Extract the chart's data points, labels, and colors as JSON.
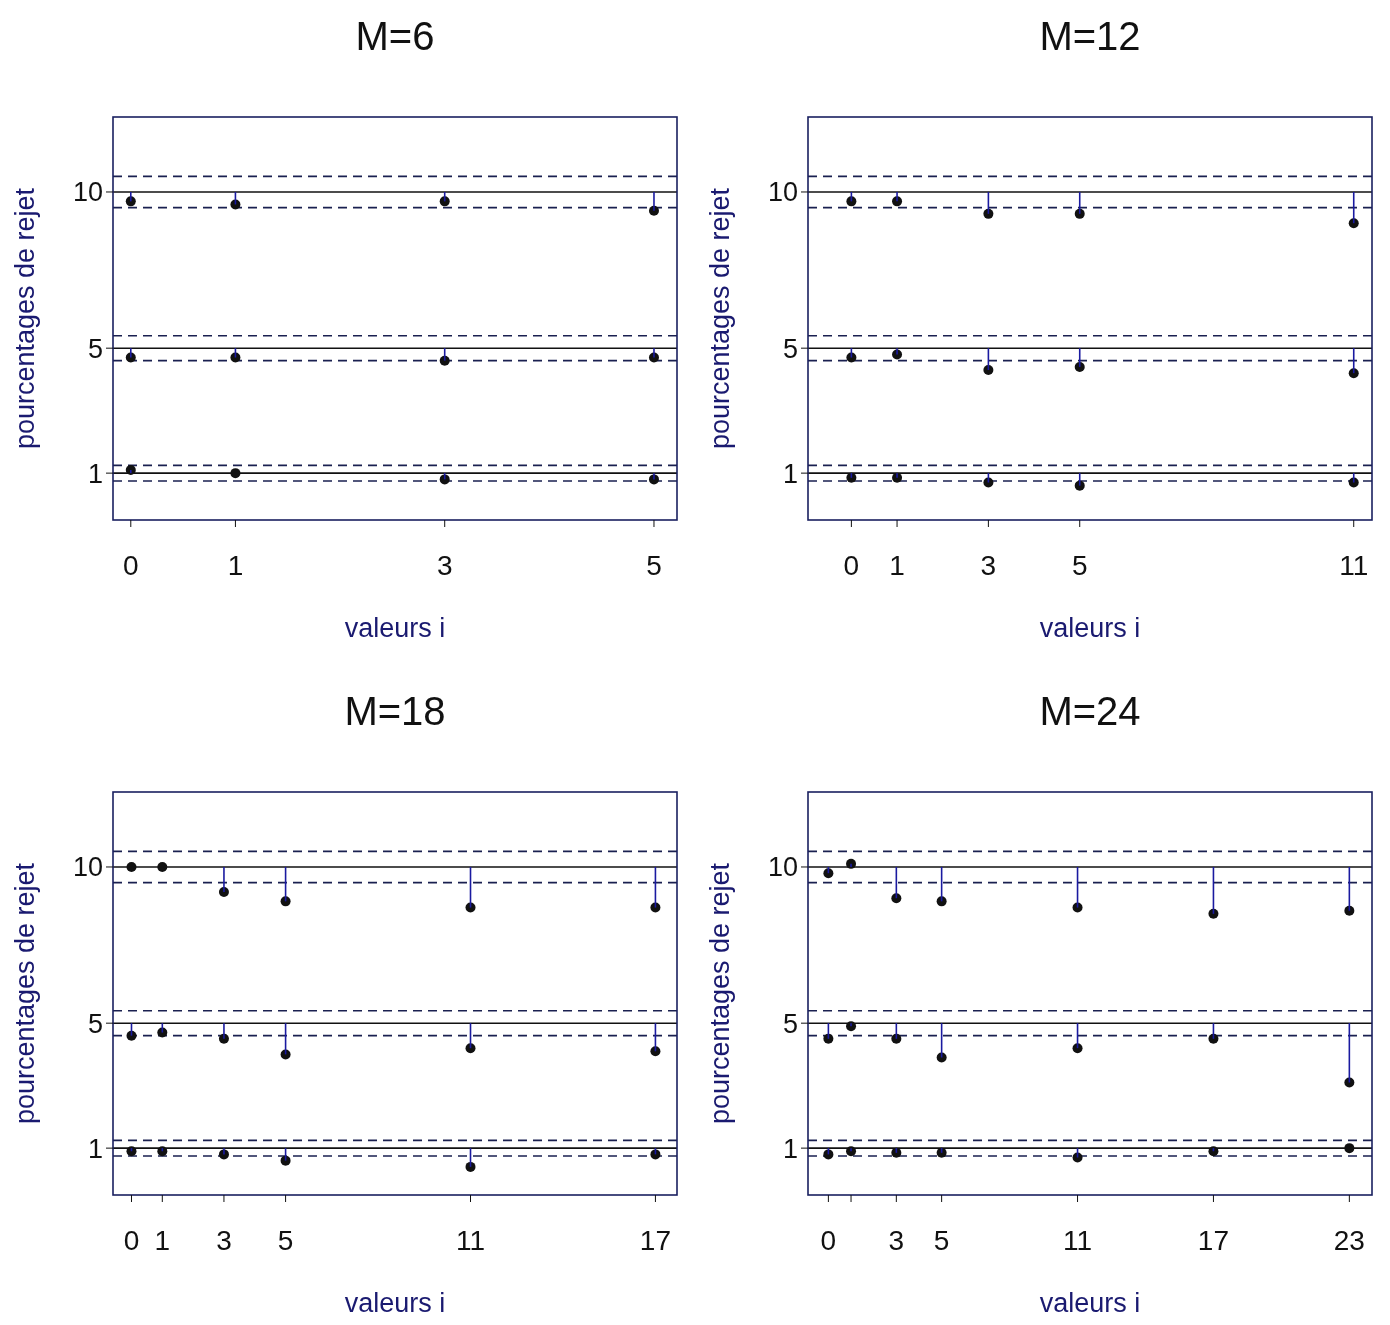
{
  "chart_data": [
    {
      "type": "scatter",
      "title": "M=6",
      "xlabel": "valeurs i",
      "ylabel": "pourcentages de rejet",
      "x": [
        0,
        1,
        3,
        5
      ],
      "xlim": [
        -0.17,
        5.22
      ],
      "xticks": [
        0,
        1,
        3,
        5
      ],
      "ylim": [
        -0.5,
        12.4
      ],
      "yticks": [
        1,
        5,
        10
      ],
      "marker": "circle",
      "series": [
        {
          "color": "#111111",
          "values": [
            9.7,
            9.6,
            9.7,
            9.4
          ],
          "errors": [
            [
              9.7,
              10
            ],
            [
              9.6,
              10
            ],
            [
              9.7,
              10
            ],
            [
              9.4,
              10
            ]
          ]
        },
        {
          "color": "#111111",
          "values": [
            4.7,
            4.7,
            4.6,
            4.7
          ],
          "errors": [
            [
              4.7,
              5
            ],
            [
              4.7,
              5
            ],
            [
              4.6,
              5
            ],
            [
              4.7,
              5
            ]
          ]
        },
        {
          "color": "#111111",
          "values": [
            1.1,
            1.0,
            0.8,
            0.8
          ],
          "errors": [
            [
              1,
              1.1
            ],
            null,
            [
              0.8,
              1
            ],
            [
              0.8,
              1
            ]
          ]
        }
      ],
      "ref_lines": [
        {
          "axis": "y",
          "value": 10,
          "color": "#111111",
          "line_style": "solid"
        },
        {
          "axis": "y",
          "value": 10.5,
          "color": "#1a2050",
          "line_style": "dashed"
        },
        {
          "axis": "y",
          "value": 9.5,
          "color": "#1a2050",
          "line_style": "dashed"
        },
        {
          "axis": "y",
          "value": 5,
          "color": "#111111",
          "line_style": "solid"
        },
        {
          "axis": "y",
          "value": 5.4,
          "color": "#1a2050",
          "line_style": "dashed"
        },
        {
          "axis": "y",
          "value": 4.6,
          "color": "#1a2050",
          "line_style": "dashed"
        },
        {
          "axis": "y",
          "value": 1,
          "color": "#111111",
          "line_style": "solid"
        },
        {
          "axis": "y",
          "value": 1.25,
          "color": "#1a2050",
          "line_style": "dashed"
        },
        {
          "axis": "y",
          "value": 0.75,
          "color": "#1a2050",
          "line_style": "dashed"
        }
      ]
    },
    {
      "type": "scatter",
      "title": "M=12",
      "xlabel": "valeurs i",
      "ylabel": "pourcentages de rejet",
      "x": [
        0,
        1,
        3,
        5,
        11
      ],
      "xlim": [
        -0.95,
        11.4
      ],
      "xticks": [
        0,
        1,
        3,
        5,
        11
      ],
      "ylim": [
        -0.5,
        12.4
      ],
      "yticks": [
        1,
        5,
        10
      ],
      "marker": "circle",
      "series": [
        {
          "color": "#111111",
          "values": [
            9.7,
            9.7,
            9.3,
            9.3,
            9.0
          ],
          "errors": [
            [
              9.7,
              10
            ],
            [
              9.7,
              10
            ],
            [
              9.3,
              10
            ],
            [
              9.3,
              10
            ],
            [
              9.0,
              10
            ]
          ]
        },
        {
          "color": "#111111",
          "values": [
            4.7,
            4.8,
            4.3,
            4.4,
            4.2
          ],
          "errors": [
            [
              4.7,
              5
            ],
            [
              4.8,
              5
            ],
            [
              4.3,
              5
            ],
            [
              4.4,
              5
            ],
            [
              4.2,
              5
            ]
          ]
        },
        {
          "color": "#111111",
          "values": [
            0.85,
            0.85,
            0.7,
            0.6,
            0.7
          ],
          "errors": [
            [
              0.85,
              1
            ],
            [
              0.85,
              1
            ],
            [
              0.7,
              1
            ],
            [
              0.6,
              1
            ],
            [
              0.7,
              1
            ]
          ]
        }
      ],
      "ref_lines": [
        {
          "axis": "y",
          "value": 10,
          "color": "#111111",
          "line_style": "solid"
        },
        {
          "axis": "y",
          "value": 10.5,
          "color": "#1a2050",
          "line_style": "dashed"
        },
        {
          "axis": "y",
          "value": 9.5,
          "color": "#1a2050",
          "line_style": "dashed"
        },
        {
          "axis": "y",
          "value": 5,
          "color": "#111111",
          "line_style": "solid"
        },
        {
          "axis": "y",
          "value": 5.4,
          "color": "#1a2050",
          "line_style": "dashed"
        },
        {
          "axis": "y",
          "value": 4.6,
          "color": "#1a2050",
          "line_style": "dashed"
        },
        {
          "axis": "y",
          "value": 1,
          "color": "#111111",
          "line_style": "solid"
        },
        {
          "axis": "y",
          "value": 1.25,
          "color": "#1a2050",
          "line_style": "dashed"
        },
        {
          "axis": "y",
          "value": 0.75,
          "color": "#1a2050",
          "line_style": "dashed"
        }
      ]
    },
    {
      "type": "scatter",
      "title": "M=18",
      "xlabel": "valeurs i",
      "ylabel": "pourcentages de rejet",
      "x": [
        0,
        1,
        3,
        5,
        11,
        17
      ],
      "xlim": [
        -0.6,
        17.7
      ],
      "xticks": [
        0,
        1,
        3,
        5,
        11,
        17
      ],
      "ylim": [
        -0.5,
        12.4
      ],
      "yticks": [
        1,
        5,
        10
      ],
      "marker": "circle",
      "series": [
        {
          "color": "#111111",
          "values": [
            10.0,
            10.0,
            9.2,
            8.9,
            8.7,
            8.7
          ],
          "errors": [
            null,
            null,
            [
              9.2,
              10
            ],
            [
              8.9,
              10
            ],
            [
              8.7,
              10
            ],
            [
              8.7,
              10
            ]
          ]
        },
        {
          "color": "#111111",
          "values": [
            4.6,
            4.7,
            4.5,
            4.0,
            4.2,
            4.1
          ],
          "errors": [
            [
              4.6,
              5
            ],
            [
              4.7,
              5
            ],
            [
              4.5,
              5
            ],
            [
              4.0,
              5
            ],
            [
              4.2,
              5
            ],
            [
              4.1,
              5
            ]
          ]
        },
        {
          "color": "#111111",
          "values": [
            0.9,
            0.9,
            0.8,
            0.6,
            0.4,
            0.8
          ],
          "errors": [
            [
              0.9,
              1
            ],
            [
              0.9,
              1
            ],
            [
              0.8,
              1
            ],
            [
              0.6,
              1
            ],
            [
              0.4,
              1
            ],
            [
              0.8,
              1
            ]
          ]
        }
      ],
      "ref_lines": [
        {
          "axis": "y",
          "value": 10,
          "color": "#111111",
          "line_style": "solid"
        },
        {
          "axis": "y",
          "value": 10.5,
          "color": "#1a2050",
          "line_style": "dashed"
        },
        {
          "axis": "y",
          "value": 9.5,
          "color": "#1a2050",
          "line_style": "dashed"
        },
        {
          "axis": "y",
          "value": 5,
          "color": "#111111",
          "line_style": "solid"
        },
        {
          "axis": "y",
          "value": 5.4,
          "color": "#1a2050",
          "line_style": "dashed"
        },
        {
          "axis": "y",
          "value": 4.6,
          "color": "#1a2050",
          "line_style": "dashed"
        },
        {
          "axis": "y",
          "value": 1,
          "color": "#111111",
          "line_style": "solid"
        },
        {
          "axis": "y",
          "value": 1.25,
          "color": "#1a2050",
          "line_style": "dashed"
        },
        {
          "axis": "y",
          "value": 0.75,
          "color": "#1a2050",
          "line_style": "dashed"
        }
      ]
    },
    {
      "type": "scatter",
      "title": "M=24",
      "xlabel": "valeurs i",
      "ylabel": "pourcentages de rejet",
      "x": [
        0,
        1,
        3,
        5,
        11,
        17,
        23
      ],
      "xlim": [
        -0.9,
        24.0
      ],
      "xticks": [
        0,
        {
          "value": 1,
          "label": null
        },
        3,
        5,
        11,
        17,
        23
      ],
      "ylim": [
        -0.5,
        12.4
      ],
      "yticks": [
        1,
        5,
        10
      ],
      "marker": "circle",
      "series": [
        {
          "color": "#111111",
          "values": [
            9.8,
            10.1,
            9.0,
            8.9,
            8.7,
            8.5,
            8.6
          ],
          "errors": [
            [
              9.8,
              10
            ],
            [
              10,
              10.1
            ],
            [
              9.0,
              10
            ],
            [
              8.9,
              10
            ],
            [
              8.7,
              10
            ],
            [
              8.5,
              10
            ],
            [
              8.6,
              10
            ]
          ]
        },
        {
          "color": "#111111",
          "values": [
            4.5,
            4.9,
            4.5,
            3.9,
            4.2,
            4.5,
            3.1
          ],
          "errors": [
            [
              4.5,
              5
            ],
            [
              4.9,
              5
            ],
            [
              4.5,
              5
            ],
            [
              3.9,
              5
            ],
            [
              4.2,
              5
            ],
            [
              4.5,
              5
            ],
            [
              3.1,
              5
            ]
          ]
        },
        {
          "color": "#111111",
          "values": [
            0.8,
            0.9,
            0.85,
            0.85,
            0.7,
            0.9,
            1.0
          ],
          "errors": [
            [
              0.8,
              1
            ],
            [
              0.9,
              1
            ],
            [
              0.85,
              1
            ],
            [
              0.85,
              1
            ],
            [
              0.7,
              1
            ],
            [
              0.9,
              1
            ],
            null
          ]
        }
      ],
      "ref_lines": [
        {
          "axis": "y",
          "value": 10,
          "color": "#111111",
          "line_style": "solid"
        },
        {
          "axis": "y",
          "value": 10.5,
          "color": "#1a2050",
          "line_style": "dashed"
        },
        {
          "axis": "y",
          "value": 9.5,
          "color": "#1a2050",
          "line_style": "dashed"
        },
        {
          "axis": "y",
          "value": 5,
          "color": "#111111",
          "line_style": "solid"
        },
        {
          "axis": "y",
          "value": 5.4,
          "color": "#1a2050",
          "line_style": "dashed"
        },
        {
          "axis": "y",
          "value": 4.6,
          "color": "#1a2050",
          "line_style": "dashed"
        },
        {
          "axis": "y",
          "value": 1,
          "color": "#111111",
          "line_style": "solid"
        },
        {
          "axis": "y",
          "value": 1.25,
          "color": "#1a2050",
          "line_style": "dashed"
        },
        {
          "axis": "y",
          "value": 0.75,
          "color": "#1a2050",
          "line_style": "dashed"
        }
      ]
    }
  ]
}
